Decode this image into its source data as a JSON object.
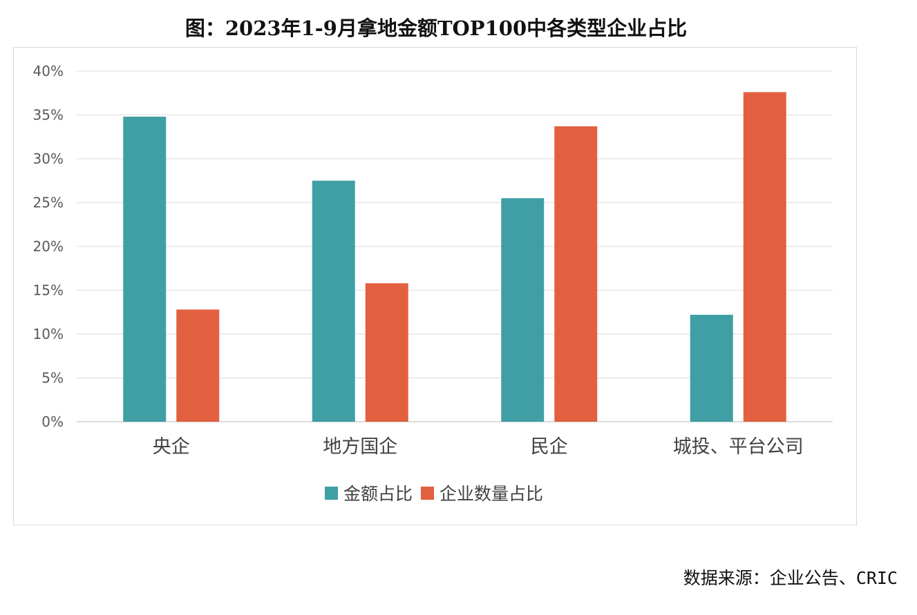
{
  "title": "图：2023年1-9月拿地金额TOP100中各类型企业占比",
  "source": "数据来源：企业公告、CRIC",
  "chart_data": {
    "type": "bar",
    "title": "图：2023年1-9月拿地金额TOP100中各类型企业占比",
    "xlabel": "",
    "ylabel": "",
    "categories": [
      "央企",
      "地方国企",
      "民企",
      "城投、平台公司"
    ],
    "series": [
      {
        "name": "金额占比",
        "color": "#3F9FA5",
        "values": [
          34.8,
          27.5,
          25.5,
          12.2
        ]
      },
      {
        "name": "企业数量占比",
        "color": "#E2603F",
        "values": [
          12.8,
          15.8,
          33.7,
          37.6
        ]
      }
    ],
    "ylim": [
      0,
      40
    ],
    "yticks": [
      0,
      5,
      10,
      15,
      20,
      25,
      30,
      35,
      40
    ],
    "ytick_labels": [
      "0%",
      "5%",
      "10%",
      "15%",
      "20%",
      "25%",
      "30%",
      "35%",
      "40%"
    ],
    "grid": true,
    "gridline_color": "#e6e6e6",
    "legend_position": "bottom"
  }
}
